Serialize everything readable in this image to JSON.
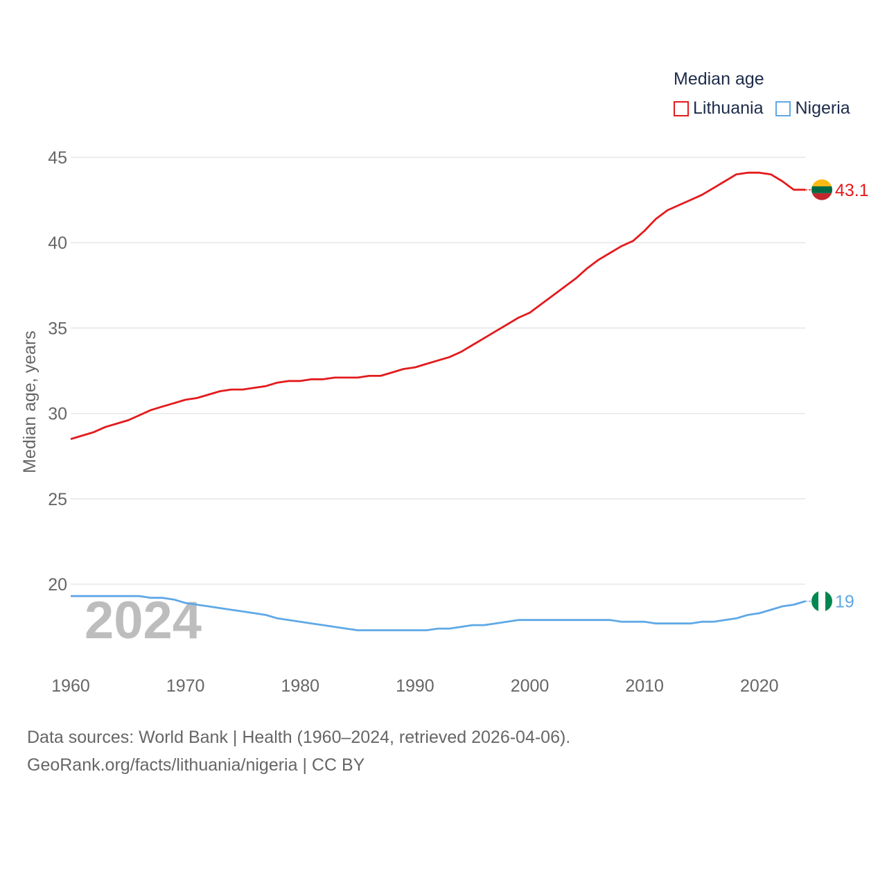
{
  "legend": {
    "title": "Median age",
    "items": [
      {
        "label": "Lithuania",
        "color": "#e31a1c"
      },
      {
        "label": "Nigeria",
        "color": "#5fa8e6"
      }
    ]
  },
  "footer": {
    "line1": "Data sources: World Bank | Health (1960–2024, retrieved 2026-04-06).",
    "line2": "GeoRank.org/facts/lithuania/nigeria | CC BY"
  },
  "chart_data": {
    "type": "line",
    "title": "Median age",
    "xlabel": "",
    "ylabel": "Median age, years",
    "xlim": [
      1960,
      2024
    ],
    "ylim": [
      16,
      46
    ],
    "yticks": [
      20,
      25,
      30,
      35,
      40,
      45
    ],
    "xticks": [
      1960,
      1970,
      1980,
      1990,
      2000,
      2010,
      2020
    ],
    "year_overlay": "2024",
    "x": [
      1960,
      1961,
      1962,
      1963,
      1964,
      1965,
      1966,
      1967,
      1968,
      1969,
      1970,
      1971,
      1972,
      1973,
      1974,
      1975,
      1976,
      1977,
      1978,
      1979,
      1980,
      1981,
      1982,
      1983,
      1984,
      1985,
      1986,
      1987,
      1988,
      1989,
      1990,
      1991,
      1992,
      1993,
      1994,
      1995,
      1996,
      1997,
      1998,
      1999,
      2000,
      2001,
      2002,
      2003,
      2004,
      2005,
      2006,
      2007,
      2008,
      2009,
      2010,
      2011,
      2012,
      2013,
      2014,
      2015,
      2016,
      2017,
      2018,
      2019,
      2020,
      2021,
      2022,
      2023,
      2024
    ],
    "series": [
      {
        "name": "Lithuania",
        "color": "#e31a1c",
        "end_label": "43.1",
        "values": [
          28.5,
          28.7,
          28.9,
          29.2,
          29.4,
          29.6,
          29.9,
          30.2,
          30.4,
          30.6,
          30.8,
          30.9,
          31.1,
          31.3,
          31.4,
          31.4,
          31.5,
          31.6,
          31.8,
          31.9,
          31.9,
          32.0,
          32.0,
          32.1,
          32.1,
          32.1,
          32.2,
          32.2,
          32.4,
          32.6,
          32.7,
          32.9,
          33.1,
          33.3,
          33.6,
          34.0,
          34.4,
          34.8,
          35.2,
          35.6,
          35.9,
          36.4,
          36.9,
          37.4,
          37.9,
          38.5,
          39.0,
          39.4,
          39.8,
          40.1,
          40.7,
          41.4,
          41.9,
          42.2,
          42.5,
          42.8,
          43.2,
          43.6,
          44.0,
          44.1,
          44.1,
          44.0,
          43.6,
          43.1,
          43.1
        ]
      },
      {
        "name": "Nigeria",
        "color": "#5fa8e6",
        "end_label": "19",
        "values": [
          19.3,
          19.3,
          19.3,
          19.3,
          19.3,
          19.3,
          19.3,
          19.2,
          19.2,
          19.1,
          18.9,
          18.8,
          18.7,
          18.6,
          18.5,
          18.4,
          18.3,
          18.2,
          18.0,
          17.9,
          17.8,
          17.7,
          17.6,
          17.5,
          17.4,
          17.3,
          17.3,
          17.3,
          17.3,
          17.3,
          17.3,
          17.3,
          17.4,
          17.4,
          17.5,
          17.6,
          17.6,
          17.7,
          17.8,
          17.9,
          17.9,
          17.9,
          17.9,
          17.9,
          17.9,
          17.9,
          17.9,
          17.9,
          17.8,
          17.8,
          17.8,
          17.7,
          17.7,
          17.7,
          17.7,
          17.8,
          17.8,
          17.9,
          18.0,
          18.2,
          18.3,
          18.5,
          18.7,
          18.8,
          19.0
        ]
      }
    ]
  }
}
